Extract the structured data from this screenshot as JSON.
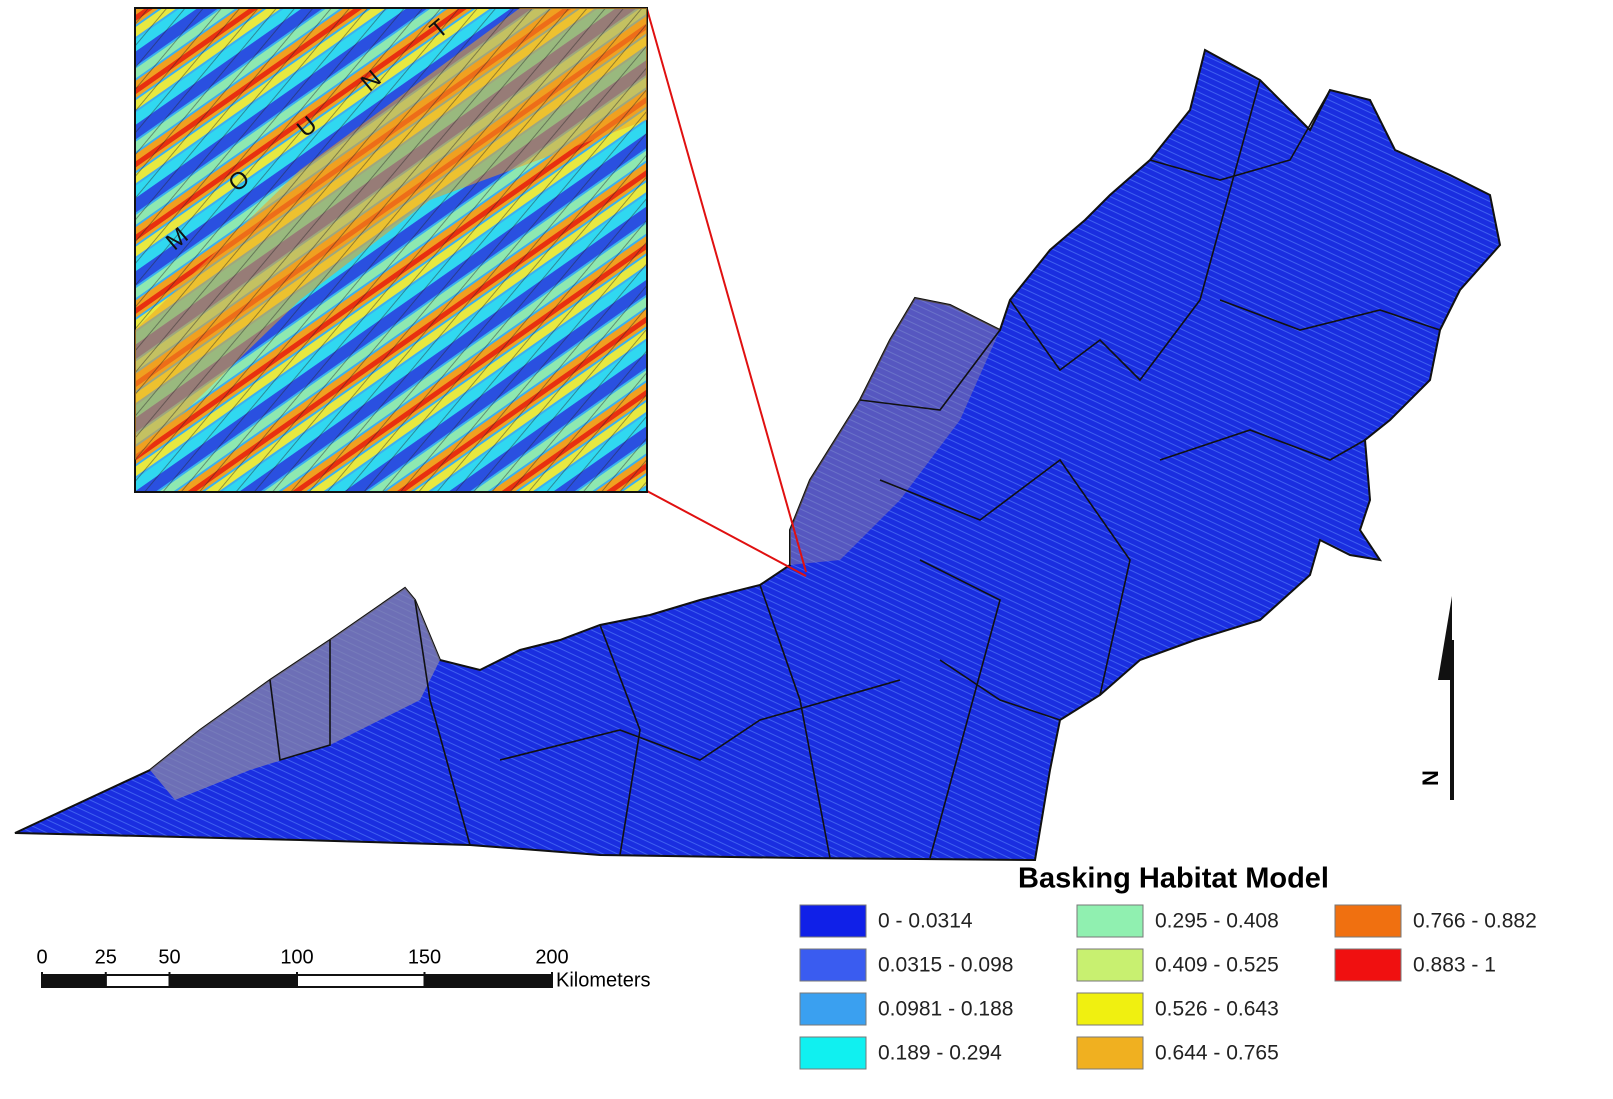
{
  "inset": {
    "letters": [
      "M",
      "O",
      "U",
      "N",
      "T"
    ]
  },
  "north_arrow": {
    "label": "N"
  },
  "scale_bar": {
    "ticks": [
      0,
      25,
      50,
      100,
      150,
      200
    ],
    "unit": "Kilometers"
  },
  "legend": {
    "title": "Basking Habitat Model",
    "items": [
      {
        "label": "0 - 0.0314",
        "color": "#1020e8"
      },
      {
        "label": "0.0315 - 0.098",
        "color": "#3a5cf0"
      },
      {
        "label": "0.0981 - 0.188",
        "color": "#3aa0f0"
      },
      {
        "label": "0.189 - 0.294",
        "color": "#10f0f0"
      },
      {
        "label": "0.295 - 0.408",
        "color": "#90f0b0"
      },
      {
        "label": "0.409 - 0.525",
        "color": "#c8f070"
      },
      {
        "label": "0.526 - 0.643",
        "color": "#f0f010"
      },
      {
        "label": "0.644 - 0.765",
        "color": "#f0b020"
      },
      {
        "label": "0.766 - 0.882",
        "color": "#f07010"
      },
      {
        "label": "0.883 - 1",
        "color": "#f01010"
      }
    ]
  }
}
